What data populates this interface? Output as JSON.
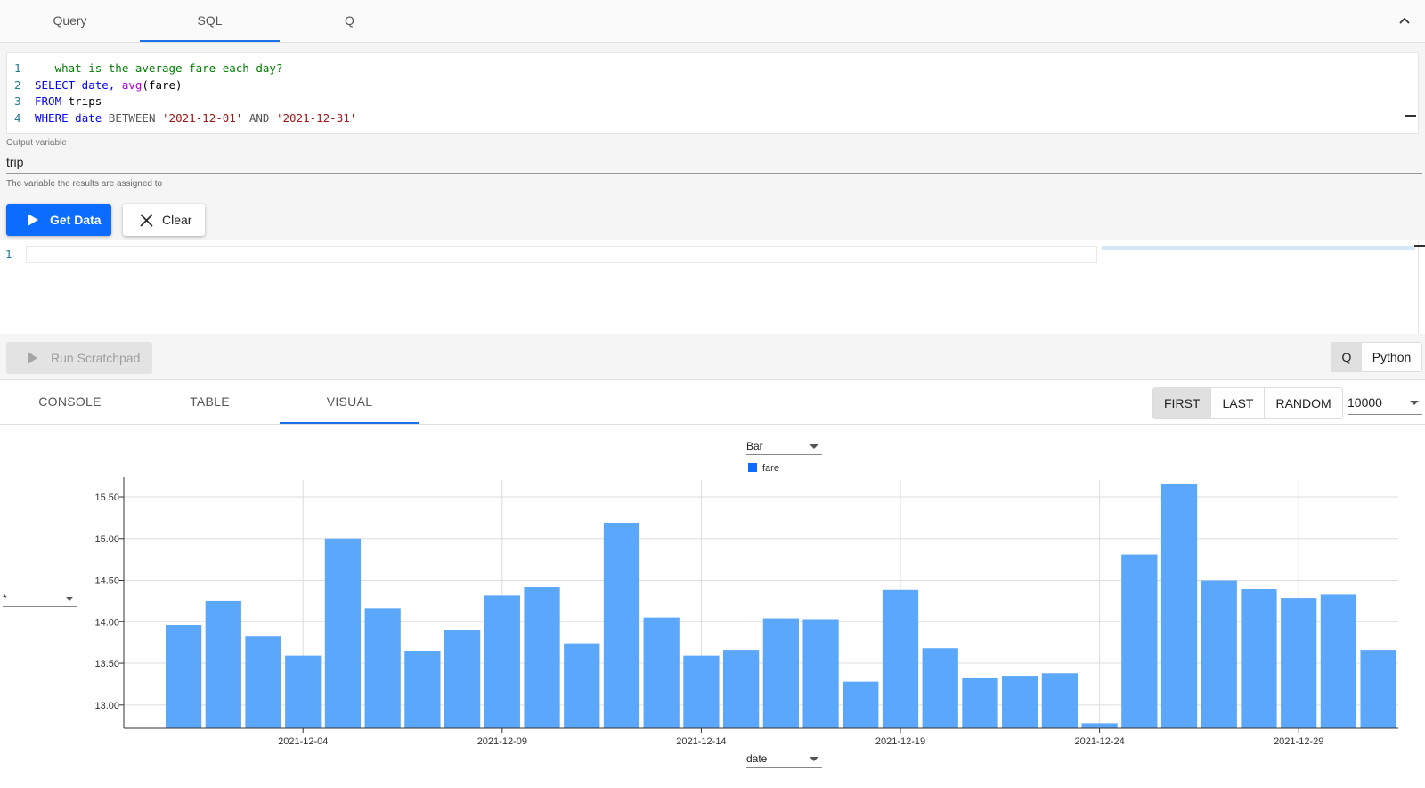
{
  "top_tabs": [
    {
      "label": "Query"
    },
    {
      "label": "SQL"
    },
    {
      "label": "Q"
    }
  ],
  "active_top_tab": "SQL",
  "editor": {
    "lines": [
      {
        "n": "1",
        "tokens": [
          {
            "t": "-- what is the average fare each day?",
            "c": "tok-comment"
          }
        ]
      },
      {
        "n": "2",
        "tokens": [
          {
            "t": "SELECT",
            "c": "tok-kw"
          },
          {
            "t": " date, ",
            "c": "tok-kw"
          },
          {
            "t": "avg",
            "c": "tok-fn"
          },
          {
            "t": "(fare)",
            "c": "tok-plain"
          }
        ]
      },
      {
        "n": "3",
        "tokens": [
          {
            "t": "FROM",
            "c": "tok-kw"
          },
          {
            "t": " trips",
            "c": "tok-plain"
          }
        ]
      },
      {
        "n": "4",
        "tokens": [
          {
            "t": "WHERE",
            "c": "tok-kw"
          },
          {
            "t": " date ",
            "c": "tok-kw"
          },
          {
            "t": "BETWEEN ",
            "c": "tok-gray"
          },
          {
            "t": "'2021-12-01'",
            "c": "tok-str"
          },
          {
            "t": " AND ",
            "c": "tok-gray"
          },
          {
            "t": "'2021-12-31'",
            "c": "tok-str"
          }
        ]
      }
    ]
  },
  "output_variable": {
    "label": "Output variable",
    "value": "trip",
    "help": "The variable the results are assigned to"
  },
  "buttons": {
    "get_data": "Get Data",
    "clear": "Clear",
    "run_scratchpad": "Run Scratchpad"
  },
  "scratchpad": {
    "line_number": "1"
  },
  "language_toggle": {
    "q": "Q",
    "python": "Python",
    "selected": "Q"
  },
  "output_tabs": [
    {
      "label": "CONSOLE"
    },
    {
      "label": "TABLE"
    },
    {
      "label": "VISUAL"
    }
  ],
  "active_output_tab": "VISUAL",
  "sample_modes": [
    {
      "label": "FIRST"
    },
    {
      "label": "LAST"
    },
    {
      "label": "RANDOM"
    }
  ],
  "active_sample_mode": "FIRST",
  "row_limit": "10000",
  "chart_type_select": "Bar",
  "y_select": "*",
  "x_select": "date",
  "colors": {
    "bar": "#5aa7fb",
    "legend": "#0b6cff",
    "accent": "#1a73e8"
  },
  "chart_data": {
    "type": "bar",
    "legend": [
      "fare"
    ],
    "x_tick_labels": [
      "2021-12-04",
      "2021-12-09",
      "2021-12-14",
      "2021-12-19",
      "2021-12-24",
      "2021-12-29"
    ],
    "y_tick_labels": [
      "13.00",
      "13.50",
      "14.00",
      "14.50",
      "15.00",
      "15.50"
    ],
    "ylim": [
      12.72,
      15.65
    ],
    "xlim": [
      "2021-11-30",
      "2021-12-31"
    ],
    "grid": true,
    "series": [
      {
        "name": "fare",
        "points": [
          {
            "x": "2021-12-01",
            "y": 13.96
          },
          {
            "x": "2021-12-02",
            "y": 14.25
          },
          {
            "x": "2021-12-03",
            "y": 13.83
          },
          {
            "x": "2021-12-04",
            "y": 13.59
          },
          {
            "x": "2021-12-05",
            "y": 15.0
          },
          {
            "x": "2021-12-06",
            "y": 14.16
          },
          {
            "x": "2021-12-07",
            "y": 13.65
          },
          {
            "x": "2021-12-08",
            "y": 13.9
          },
          {
            "x": "2021-12-09",
            "y": 14.32
          },
          {
            "x": "2021-12-10",
            "y": 14.42
          },
          {
            "x": "2021-12-11",
            "y": 13.74
          },
          {
            "x": "2021-12-12",
            "y": 15.19
          },
          {
            "x": "2021-12-13",
            "y": 14.05
          },
          {
            "x": "2021-12-14",
            "y": 13.59
          },
          {
            "x": "2021-12-15",
            "y": 13.66
          },
          {
            "x": "2021-12-16",
            "y": 14.04
          },
          {
            "x": "2021-12-17",
            "y": 14.03
          },
          {
            "x": "2021-12-18",
            "y": 13.28
          },
          {
            "x": "2021-12-19",
            "y": 14.38
          },
          {
            "x": "2021-12-20",
            "y": 13.68
          },
          {
            "x": "2021-12-21",
            "y": 13.33
          },
          {
            "x": "2021-12-22",
            "y": 13.35
          },
          {
            "x": "2021-12-23",
            "y": 13.38
          },
          {
            "x": "2021-12-24",
            "y": 12.78
          },
          {
            "x": "2021-12-25",
            "y": 14.81
          },
          {
            "x": "2021-12-26",
            "y": 15.65
          },
          {
            "x": "2021-12-27",
            "y": 14.5
          },
          {
            "x": "2021-12-28",
            "y": 14.39
          },
          {
            "x": "2021-12-29",
            "y": 14.28
          },
          {
            "x": "2021-12-30",
            "y": 14.33
          },
          {
            "x": "2021-12-31",
            "y": 13.66
          }
        ]
      }
    ]
  }
}
